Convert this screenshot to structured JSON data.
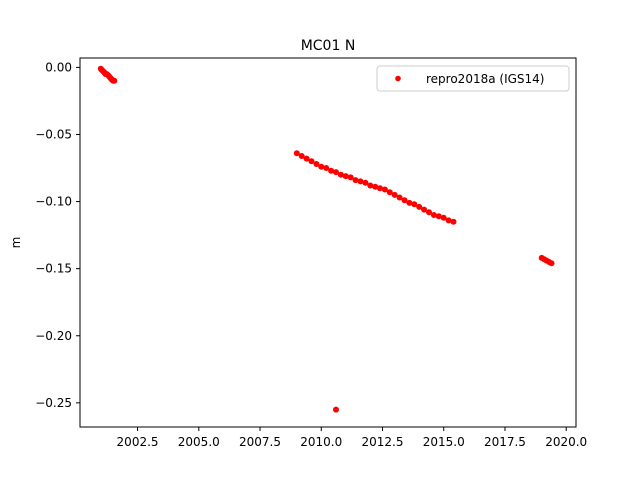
{
  "chart_data": {
    "type": "scatter",
    "title": "MC01 N",
    "xlabel": "",
    "ylabel": "m",
    "xlim": [
      2000.15,
      2020.4
    ],
    "ylim": [
      -0.268,
      0.007
    ],
    "xticks": [
      2002.5,
      2005.0,
      2007.5,
      2010.0,
      2012.5,
      2015.0,
      2017.5,
      2020.0
    ],
    "xtick_labels": [
      "2002.5",
      "2005.0",
      "2007.5",
      "2010.0",
      "2012.5",
      "2015.0",
      "2017.5",
      "2020.0"
    ],
    "yticks": [
      0.0,
      -0.05,
      -0.1,
      -0.15,
      -0.2,
      -0.25
    ],
    "ytick_labels": [
      "0.00",
      "−0.05",
      "−0.10",
      "−0.15",
      "−0.20",
      "−0.25"
    ],
    "grid": false,
    "legend_position": "top-right",
    "series": [
      {
        "name": "repro2018a (IGS14)",
        "color": "#ff0000",
        "marker": "circle",
        "x": [
          2001.0,
          2001.05,
          2001.1,
          2001.15,
          2001.2,
          2001.25,
          2001.3,
          2001.35,
          2001.4,
          2001.45,
          2001.5,
          2001.55,
          2009.0,
          2009.2,
          2009.4,
          2009.6,
          2009.8,
          2010.0,
          2010.2,
          2010.4,
          2010.6,
          2010.8,
          2011.0,
          2011.2,
          2011.4,
          2011.6,
          2011.8,
          2012.0,
          2012.2,
          2012.4,
          2012.6,
          2012.8,
          2013.0,
          2013.2,
          2013.4,
          2013.6,
          2013.8,
          2014.0,
          2014.2,
          2014.4,
          2014.6,
          2014.8,
          2015.0,
          2015.2,
          2015.4,
          2019.0,
          2019.1,
          2019.2,
          2019.3,
          2019.4,
          2010.6
        ],
        "y": [
          -0.001,
          -0.002,
          -0.003,
          -0.004,
          -0.005,
          -0.005,
          -0.006,
          -0.007,
          -0.008,
          -0.009,
          -0.01,
          -0.01,
          -0.064,
          -0.066,
          -0.068,
          -0.07,
          -0.072,
          -0.074,
          -0.075,
          -0.077,
          -0.078,
          -0.08,
          -0.081,
          -0.082,
          -0.084,
          -0.085,
          -0.086,
          -0.088,
          -0.089,
          -0.09,
          -0.091,
          -0.093,
          -0.095,
          -0.097,
          -0.099,
          -0.101,
          -0.102,
          -0.104,
          -0.106,
          -0.108,
          -0.11,
          -0.111,
          -0.112,
          -0.114,
          -0.115,
          -0.142,
          -0.143,
          -0.144,
          -0.145,
          -0.146,
          -0.255
        ]
      }
    ]
  }
}
